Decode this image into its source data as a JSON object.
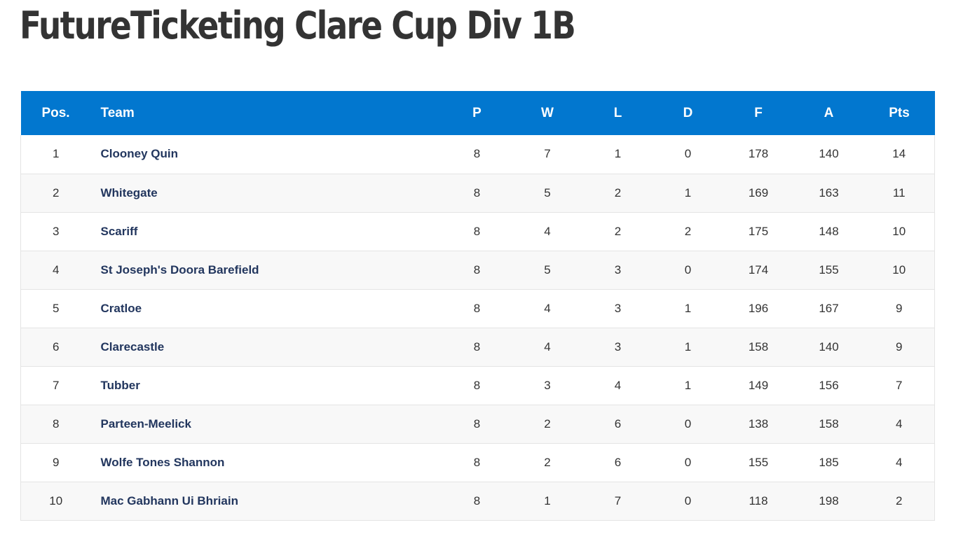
{
  "page": {
    "title": "FutureTicketing Clare Cup Div 1B"
  },
  "table": {
    "headers": {
      "pos": "Pos.",
      "team": "Team",
      "played": "P",
      "won": "W",
      "lost": "L",
      "drawn": "D",
      "for": "F",
      "against": "A",
      "points": "Pts"
    },
    "rows": [
      {
        "pos": "1",
        "team": "Clooney Quin",
        "played": "8",
        "won": "7",
        "lost": "1",
        "drawn": "0",
        "for": "178",
        "against": "140",
        "points": "14"
      },
      {
        "pos": "2",
        "team": "Whitegate",
        "played": "8",
        "won": "5",
        "lost": "2",
        "drawn": "1",
        "for": "169",
        "against": "163",
        "points": "11"
      },
      {
        "pos": "3",
        "team": "Scariff",
        "played": "8",
        "won": "4",
        "lost": "2",
        "drawn": "2",
        "for": "175",
        "against": "148",
        "points": "10"
      },
      {
        "pos": "4",
        "team": "St Joseph's Doora Barefield",
        "played": "8",
        "won": "5",
        "lost": "3",
        "drawn": "0",
        "for": "174",
        "against": "155",
        "points": "10"
      },
      {
        "pos": "5",
        "team": "Cratloe",
        "played": "8",
        "won": "4",
        "lost": "3",
        "drawn": "1",
        "for": "196",
        "against": "167",
        "points": "9"
      },
      {
        "pos": "6",
        "team": "Clarecastle",
        "played": "8",
        "won": "4",
        "lost": "3",
        "drawn": "1",
        "for": "158",
        "against": "140",
        "points": "9"
      },
      {
        "pos": "7",
        "team": "Tubber",
        "played": "8",
        "won": "3",
        "lost": "4",
        "drawn": "1",
        "for": "149",
        "against": "156",
        "points": "7"
      },
      {
        "pos": "8",
        "team": "Parteen-Meelick",
        "played": "8",
        "won": "2",
        "lost": "6",
        "drawn": "0",
        "for": "138",
        "against": "158",
        "points": "4"
      },
      {
        "pos": "9",
        "team": "Wolfe Tones Shannon",
        "played": "8",
        "won": "2",
        "lost": "6",
        "drawn": "0",
        "for": "155",
        "against": "185",
        "points": "4"
      },
      {
        "pos": "10",
        "team": "Mac Gabhann Ui Bhriain",
        "played": "8",
        "won": "1",
        "lost": "7",
        "drawn": "0",
        "for": "118",
        "against": "198",
        "points": "2"
      }
    ]
  },
  "colors": {
    "header_background": "#0277cf",
    "header_text": "#ffffff",
    "team_name_text": "#22365e",
    "row_alt_background": "#f8f8f8"
  }
}
